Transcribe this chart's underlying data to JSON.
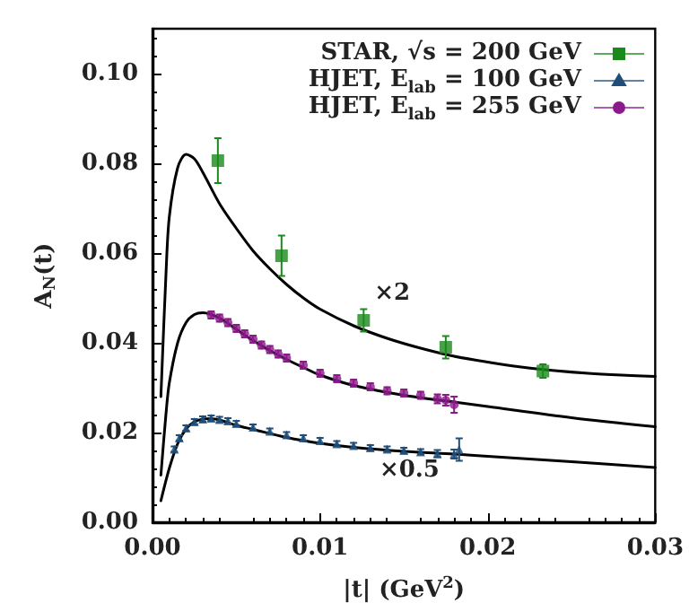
{
  "chart_data": {
    "type": "scatter",
    "xlabel": "|t| (GeV$^{2}$)",
    "ylabel": "A$_{N}$(t)",
    "xlim": [
      0,
      0.03
    ],
    "xticks": [
      {
        "value": 0,
        "label": "0.00"
      },
      {
        "value": 0.01,
        "label": "0.01"
      },
      {
        "value": 0.02,
        "label": "0.02"
      },
      {
        "value": 0.03,
        "label": "0.03"
      }
    ],
    "ylim": [
      0,
      0.11
    ],
    "yticks": [
      {
        "value": 0,
        "label": "0.00"
      },
      {
        "value": 0.02,
        "label": "0.02"
      },
      {
        "value": 0.04,
        "label": "0.04"
      },
      {
        "value": 0.06,
        "label": "0.06"
      },
      {
        "value": 0.08,
        "label": "0.08"
      },
      {
        "value": 0.1,
        "label": "0.10"
      }
    ],
    "grid": false,
    "legend": "top right",
    "marker": "square",
    "annotations": [
      "×2",
      "×0.5"
    ],
    "series": [
      {
        "type": "line",
        "color": "#000000",
        "line_style": "solid",
        "marker": "none",
        "x": [
          0.0005,
          0.0008,
          0.001,
          0.0015,
          0.002,
          0.0025,
          0.003,
          0.004,
          0.005,
          0.006,
          0.007,
          0.008,
          0.009,
          0.01,
          0.012,
          0.014,
          0.016,
          0.018,
          0.02,
          0.022,
          0.024,
          0.026,
          0.028,
          0.03
        ],
        "values": [
          0.028,
          0.055,
          0.068,
          0.079,
          0.082,
          0.081,
          0.078,
          0.071,
          0.0655,
          0.0605,
          0.0565,
          0.053,
          0.05,
          0.0475,
          0.0438,
          0.041,
          0.0388,
          0.037,
          0.0357,
          0.0346,
          0.0338,
          0.0332,
          0.0328,
          0.0325
        ]
      },
      {
        "type": "line",
        "color": "#000000",
        "line_style": "solid",
        "marker": "none",
        "x": [
          0.0005,
          0.0008,
          0.001,
          0.0015,
          0.002,
          0.0025,
          0.003,
          0.004,
          0.005,
          0.006,
          0.007,
          0.008,
          0.009,
          0.01,
          0.012,
          0.015,
          0.018,
          0.02,
          0.025,
          0.03
        ],
        "values": [
          0.0105,
          0.024,
          0.031,
          0.04,
          0.0445,
          0.0463,
          0.0467,
          0.0455,
          0.043,
          0.0405,
          0.0383,
          0.0363,
          0.0345,
          0.0328,
          0.0305,
          0.0283,
          0.0268,
          0.0258,
          0.0233,
          0.0213
        ]
      },
      {
        "type": "line",
        "color": "#000000",
        "line_style": "solid",
        "marker": "none",
        "x": [
          0.0005,
          0.001,
          0.0015,
          0.002,
          0.0025,
          0.003,
          0.0035,
          0.004,
          0.005,
          0.006,
          0.008,
          0.01,
          0.012,
          0.015,
          0.018,
          0.02,
          0.025,
          0.03
        ],
        "values": [
          0.0048,
          0.012,
          0.0175,
          0.0208,
          0.0224,
          0.023,
          0.0231,
          0.0228,
          0.0216,
          0.0207,
          0.0189,
          0.0176,
          0.0167,
          0.0158,
          0.0152,
          0.0147,
          0.0135,
          0.0122
        ]
      },
      {
        "name": "STAR, √s = 200 GeV",
        "color": "#1a8a1a",
        "x": [
          0.0039,
          0.0077,
          0.0126,
          0.0175,
          0.0233
        ],
        "values": [
          0.0806,
          0.0594,
          0.045,
          0.039,
          0.0337
        ],
        "errors": [
          0.005,
          0.0045,
          0.0025,
          0.0025,
          0.0015
        ]
      },
      {
        "name": "HJET, E$_{lab}$ = 100 GeV",
        "color": "#1f4e79",
        "marker": "triangle",
        "x": [
          0.0013,
          0.0016,
          0.002,
          0.0025,
          0.003,
          0.0035,
          0.004,
          0.0045,
          0.005,
          0.006,
          0.007,
          0.008,
          0.009,
          0.01,
          0.011,
          0.012,
          0.013,
          0.014,
          0.015,
          0.016,
          0.017,
          0.018,
          0.0183
        ],
        "values": [
          0.0163,
          0.0188,
          0.021,
          0.0224,
          0.023,
          0.0232,
          0.0229,
          0.0226,
          0.022,
          0.0212,
          0.0203,
          0.0195,
          0.0188,
          0.0182,
          0.0175,
          0.0171,
          0.0166,
          0.0163,
          0.016,
          0.0157,
          0.0153,
          0.0152,
          0.0162
        ],
        "errors": [
          0.0006,
          0.0006,
          0.0006,
          0.0006,
          0.0006,
          0.0006,
          0.0006,
          0.0006,
          0.0006,
          0.0006,
          0.0006,
          0.0006,
          0.0006,
          0.0006,
          0.0006,
          0.0006,
          0.0006,
          0.0006,
          0.0006,
          0.0006,
          0.0008,
          0.001,
          0.0025
        ]
      },
      {
        "name": "HJET, E$_{lab}$ = 255 GeV",
        "color": "#8b1a8b",
        "marker": "circle",
        "x": [
          0.0035,
          0.004,
          0.0045,
          0.005,
          0.0055,
          0.006,
          0.0065,
          0.007,
          0.0075,
          0.008,
          0.009,
          0.01,
          0.011,
          0.012,
          0.013,
          0.014,
          0.015,
          0.016,
          0.017,
          0.0175,
          0.018
        ],
        "values": [
          0.0462,
          0.0455,
          0.0445,
          0.0432,
          0.042,
          0.0408,
          0.0395,
          0.0385,
          0.0375,
          0.0366,
          0.035,
          0.0332,
          0.032,
          0.031,
          0.0302,
          0.0293,
          0.0288,
          0.0283,
          0.0275,
          0.0272,
          0.0262
        ],
        "errors": [
          0.0008,
          0.0008,
          0.0008,
          0.0008,
          0.0008,
          0.0008,
          0.0008,
          0.0008,
          0.0008,
          0.0008,
          0.0008,
          0.0008,
          0.0008,
          0.0008,
          0.0008,
          0.0008,
          0.0008,
          0.0008,
          0.001,
          0.0012,
          0.0018
        ]
      }
    ]
  }
}
